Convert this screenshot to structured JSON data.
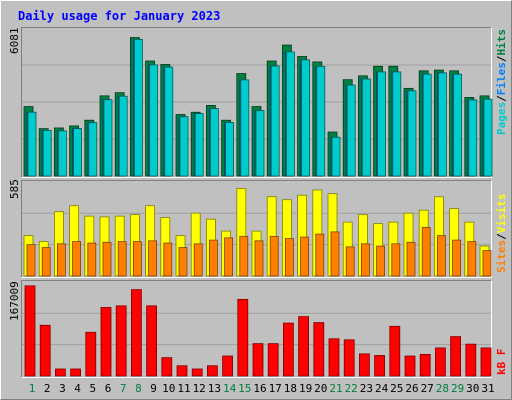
{
  "chart_data": [
    {
      "type": "bar",
      "title": "Daily usage for January 2023",
      "y_max_label": "6081",
      "ylim": [
        0,
        6500
      ],
      "legend": [
        {
          "name": "Pages",
          "color": "#00cccc"
        },
        {
          "name": "Files",
          "color": "#0080ff"
        },
        {
          "name": "Hits",
          "color": "#008040"
        }
      ],
      "legend_separator": "/",
      "categories": [
        "1",
        "2",
        "3",
        "4",
        "5",
        "6",
        "7",
        "8",
        "9",
        "10",
        "11",
        "12",
        "13",
        "14",
        "15",
        "16",
        "17",
        "18",
        "19",
        "20",
        "21",
        "22",
        "23",
        "24",
        "25",
        "26",
        "27",
        "28",
        "29",
        "30",
        "31"
      ],
      "series": [
        {
          "name": "Hits",
          "values": [
            3050,
            2080,
            2110,
            2200,
            2450,
            3520,
            3660,
            6081,
            5050,
            4900,
            2700,
            2800,
            3100,
            2450,
            4500,
            3050,
            5050,
            5750,
            5250,
            5010,
            1930,
            4230,
            4400,
            4820,
            4820,
            3850,
            4620,
            4650,
            4620,
            3450,
            3520
          ]
        },
        {
          "name": "Files",
          "values": [
            2800,
            2000,
            1980,
            2080,
            2340,
            3350,
            3500,
            6000,
            4880,
            4780,
            2600,
            2740,
            2960,
            2350,
            4220,
            2870,
            4830,
            5450,
            5100,
            4810,
            1700,
            3990,
            4260,
            4570,
            4570,
            3740,
            4470,
            4530,
            4470,
            3340,
            3370
          ]
        },
        {
          "name": "Pages",
          "values": [
            2800,
            2000,
            1980,
            2080,
            2340,
            3350,
            3500,
            6000,
            4880,
            4780,
            2600,
            2740,
            2960,
            2350,
            4220,
            2870,
            4830,
            5450,
            5100,
            4810,
            1700,
            3990,
            4260,
            4570,
            4570,
            3740,
            4470,
            4530,
            4470,
            3340,
            3370
          ]
        }
      ],
      "weekend_days": [
        "1",
        "7",
        "8",
        "14",
        "15",
        "21",
        "22",
        "28",
        "29"
      ]
    },
    {
      "type": "bar",
      "y_max_label": "585",
      "ylim": [
        0,
        635
      ],
      "legend": [
        {
          "name": "Sites",
          "color": "#ff8000"
        },
        {
          "name": "Visits",
          "color": "#ffff00"
        }
      ],
      "legend_separator": "/",
      "categories": [
        "1",
        "2",
        "3",
        "4",
        "5",
        "6",
        "7",
        "8",
        "9",
        "10",
        "11",
        "12",
        "13",
        "14",
        "15",
        "16",
        "17",
        "18",
        "19",
        "20",
        "21",
        "22",
        "23",
        "24",
        "25",
        "26",
        "27",
        "28",
        "29",
        "30",
        "31"
      ],
      "series": [
        {
          "name": "Visits",
          "values": [
            270,
            230,
            430,
            470,
            400,
            395,
            400,
            410,
            470,
            390,
            270,
            420,
            380,
            300,
            585,
            300,
            530,
            510,
            540,
            575,
            550,
            360,
            410,
            350,
            360,
            420,
            440,
            530,
            450,
            360,
            200
          ]
        },
        {
          "name": "Sites",
          "values": [
            210,
            190,
            215,
            230,
            220,
            225,
            230,
            230,
            235,
            220,
            190,
            215,
            240,
            255,
            265,
            235,
            265,
            250,
            260,
            280,
            295,
            195,
            215,
            200,
            215,
            225,
            325,
            270,
            240,
            230,
            170
          ]
        }
      ]
    },
    {
      "type": "bar",
      "y_max_label": "167009",
      "ylim": [
        0,
        176000
      ],
      "legend": [
        {
          "name": "kB F",
          "color": "#ff0000"
        }
      ],
      "categories": [
        "1",
        "2",
        "3",
        "4",
        "5",
        "6",
        "7",
        "8",
        "9",
        "10",
        "11",
        "12",
        "13",
        "14",
        "15",
        "16",
        "17",
        "18",
        "19",
        "20",
        "21",
        "22",
        "23",
        "24",
        "25",
        "26",
        "27",
        "28",
        "29",
        "30",
        "31"
      ],
      "series": [
        {
          "name": "kB F",
          "values": [
            167009,
            94000,
            13000,
            13000,
            81000,
            127000,
            130000,
            160000,
            130000,
            34000,
            19000,
            13000,
            19000,
            37000,
            142000,
            60000,
            60000,
            98000,
            110000,
            99000,
            69000,
            67000,
            41000,
            38000,
            92000,
            37000,
            40000,
            52000,
            73000,
            59000,
            52000
          ]
        }
      ]
    }
  ]
}
